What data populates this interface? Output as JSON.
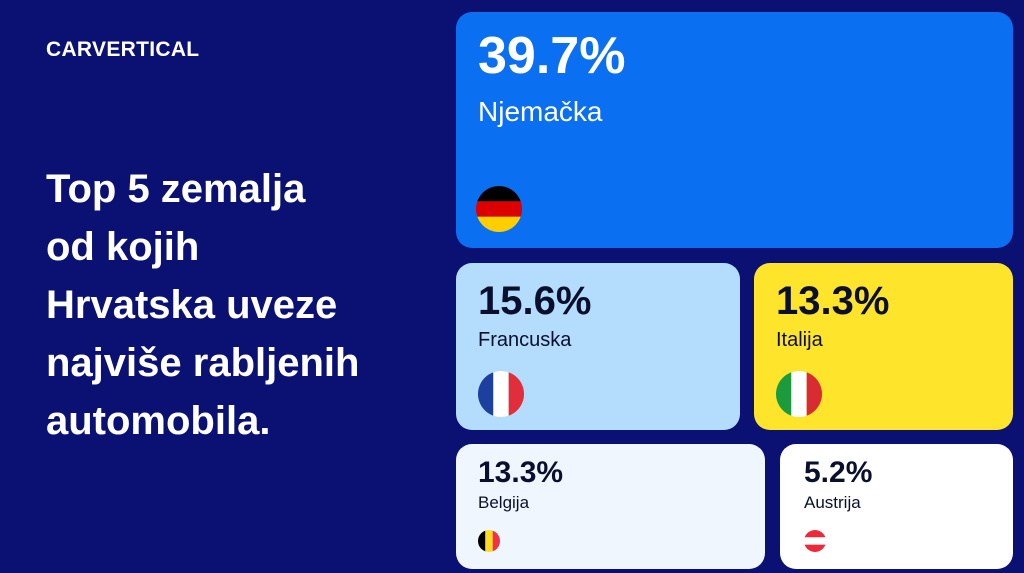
{
  "brand": {
    "logo_text": "CARVERTICAL"
  },
  "headline": {
    "lines": [
      "Top 5 zemalja",
      "od kojih",
      "Hrvatska uveze",
      "najviše rabljenih",
      "automobila."
    ]
  },
  "colors": {
    "background": "#0a1172",
    "germany_tile": "#0a6ff0",
    "france_tile": "#b3dcfd",
    "italy_tile": "#fee52b",
    "belgium_tile": "#f0f6fd",
    "austria_tile": "#ffffff",
    "dark_text": "#0a0f2e",
    "light_text": "#ffffff"
  },
  "chart_data": {
    "type": "treemap",
    "categories": [
      "Njemačka",
      "Francuska",
      "Italija",
      "Belgija",
      "Austrija"
    ],
    "values": [
      39.7,
      15.6,
      13.3,
      13.3,
      5.2
    ],
    "labels": [
      "39.7%",
      "15.6%",
      "13.3%",
      "13.3%",
      "5.2%"
    ],
    "flags": [
      "germany-flag-icon",
      "france-flag-icon",
      "italy-flag-icon",
      "belgium-flag-icon",
      "austria-flag-icon"
    ]
  }
}
